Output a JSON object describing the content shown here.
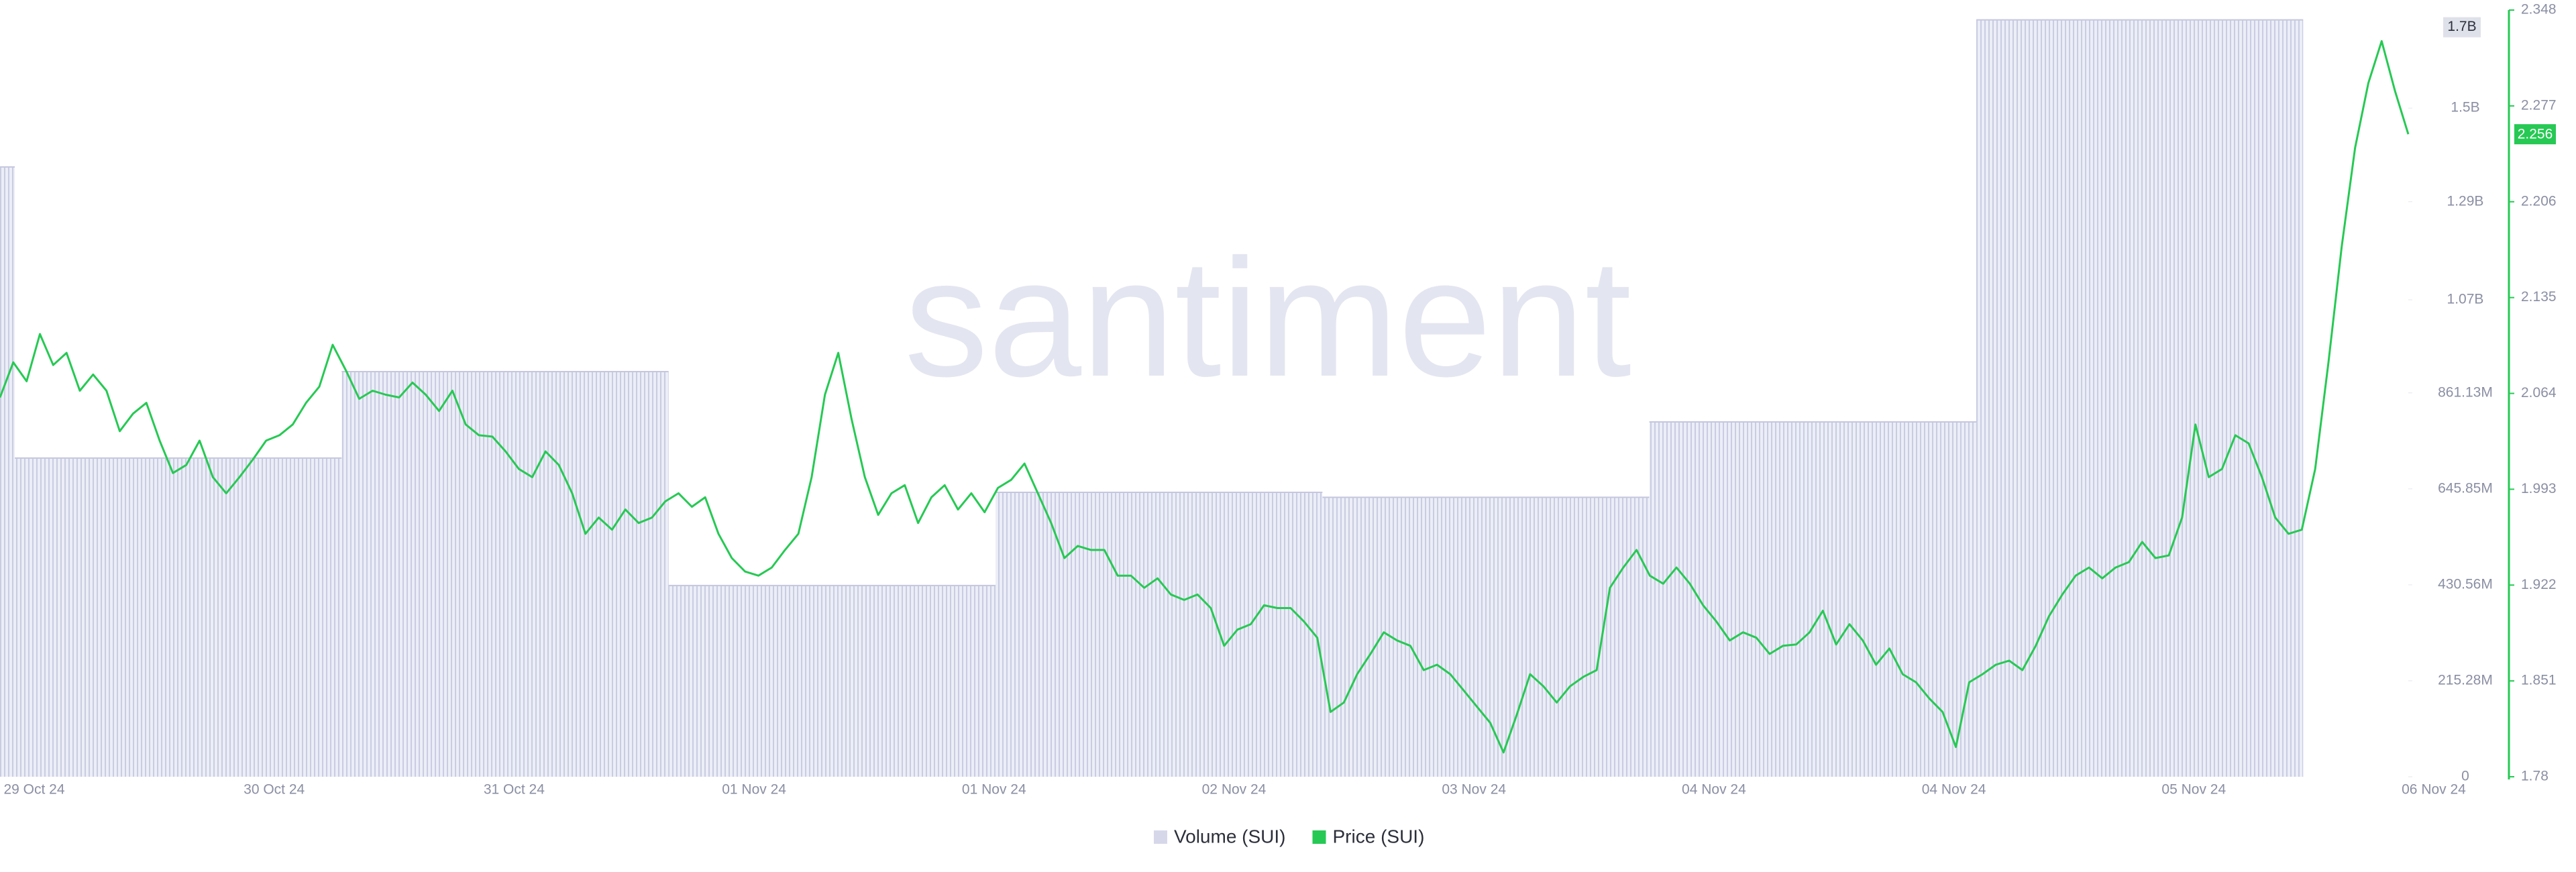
{
  "chart_data": {
    "type": "combo",
    "watermark": "santiment",
    "x_axis_labels": [
      "29 Oct 24",
      "30 Oct 24",
      "31 Oct 24",
      "01 Nov 24",
      "01 Nov 24",
      "02 Nov 24",
      "03 Nov 24",
      "04 Nov 24",
      "04 Nov 24",
      "05 Nov 24",
      "06 Nov 24"
    ],
    "ylim": [
      0,
      1720000000
    ],
    "yticks": [
      0,
      {
        "value": 215280000,
        "label": "215.28M"
      },
      {
        "value": 430560000,
        "label": "430.56M"
      },
      {
        "value": 645850000,
        "label": "645.85M"
      },
      {
        "value": 861130000,
        "label": "861.13M"
      },
      {
        "value": 1070000000,
        "label": "1.07B"
      },
      {
        "value": 1290000000,
        "label": "1.29B"
      },
      {
        "value": 1500000000,
        "label": "1.5B"
      }
    ],
    "y2lim": [
      1.78,
      2.348
    ],
    "y2ticks": [
      1.78,
      1.851,
      1.922,
      1.993,
      2.064,
      2.135,
      2.206,
      2.277,
      2.348
    ],
    "series": [
      {
        "name": "Volume (SUI)",
        "type": "bar",
        "color": "#d6d8ea",
        "values": [
          1368000000,
          715000000,
          909000000,
          429000000,
          638000000,
          627000000,
          796000000,
          1698000000
        ],
        "last_value_label": "1.7B"
      },
      {
        "name": "Price (SUI)",
        "type": "line",
        "axis": "y2",
        "color": "#26c953",
        "values": [
          2.061,
          2.087,
          2.073,
          2.108,
          2.085,
          2.094,
          2.066,
          2.078,
          2.066,
          2.036,
          2.049,
          2.057,
          2.029,
          2.005,
          2.011,
          2.029,
          2.002,
          1.99,
          2.002,
          2.015,
          2.029,
          2.033,
          2.041,
          2.057,
          2.069,
          2.1,
          2.081,
          2.06,
          2.066,
          2.063,
          2.061,
          2.072,
          2.063,
          2.051,
          2.066,
          2.041,
          2.033,
          2.032,
          2.021,
          2.008,
          2.002,
          2.021,
          2.011,
          1.99,
          1.96,
          1.972,
          1.963,
          1.978,
          1.968,
          1.972,
          1.984,
          1.99,
          1.98,
          1.987,
          1.96,
          1.942,
          1.932,
          1.929,
          1.935,
          1.948,
          1.96,
          2.002,
          2.063,
          2.094,
          2.045,
          2.002,
          1.974,
          1.99,
          1.996,
          1.968,
          1.987,
          1.996,
          1.978,
          1.99,
          1.976,
          1.994,
          2.0,
          2.012,
          1.99,
          1.968,
          1.942,
          1.951,
          1.948,
          1.948,
          1.929,
          1.929,
          1.92,
          1.927,
          1.915,
          1.911,
          1.915,
          1.905,
          1.877,
          1.889,
          1.893,
          1.907,
          1.905,
          1.905,
          1.895,
          1.883,
          1.828,
          1.835,
          1.856,
          1.871,
          1.887,
          1.881,
          1.877,
          1.859,
          1.863,
          1.856,
          1.844,
          1.832,
          1.82,
          1.798,
          1.826,
          1.856,
          1.847,
          1.835,
          1.847,
          1.854,
          1.859,
          1.92,
          1.935,
          1.948,
          1.929,
          1.923,
          1.935,
          1.923,
          1.907,
          1.895,
          1.881,
          1.887,
          1.883,
          1.871,
          1.877,
          1.878,
          1.887,
          1.903,
          1.878,
          1.893,
          1.881,
          1.863,
          1.875,
          1.856,
          1.85,
          1.838,
          1.828,
          1.802,
          1.85,
          1.856,
          1.863,
          1.866,
          1.859,
          1.877,
          1.899,
          1.915,
          1.929,
          1.935,
          1.927,
          1.935,
          1.939,
          1.954,
          1.942,
          1.944,
          1.972,
          2.041,
          2.002,
          2.008,
          2.033,
          2.027,
          2.002,
          1.972,
          1.96,
          1.963,
          2.008,
          2.087,
          2.173,
          2.246,
          2.294,
          2.325,
          2.288,
          2.256
        ],
        "last_value_label": "2.256"
      }
    ]
  }
}
